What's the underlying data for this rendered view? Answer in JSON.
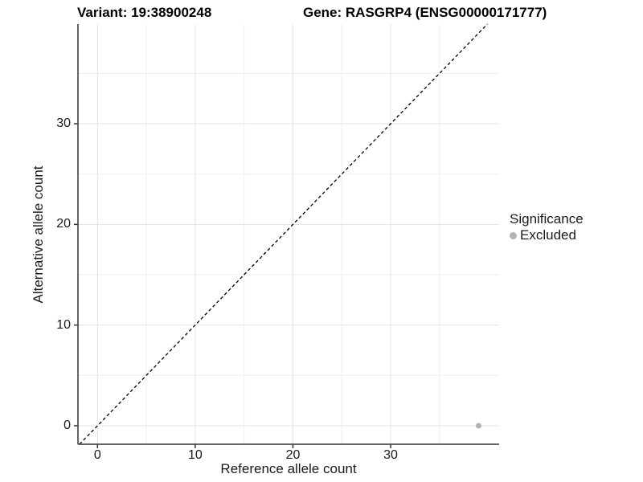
{
  "chart_data": {
    "type": "scatter",
    "title_left": "Variant: 19:38900248",
    "title_right": "Gene: RASGRP4 (ENSG00000171777)",
    "xlabel": "Reference allele count",
    "ylabel": "Alternative allele count",
    "x_ticks": [
      0,
      10,
      20,
      30
    ],
    "y_ticks": [
      0,
      10,
      20,
      30
    ],
    "x_minor": [
      5,
      15,
      25,
      35
    ],
    "y_minor": [
      5,
      15,
      25,
      35
    ],
    "xlim": [
      -2.0,
      41.1
    ],
    "ylim": [
      -1.84,
      39.9
    ],
    "grid": true,
    "identity_line": {
      "equation": "y = x",
      "style": "dashed",
      "color": "#000000"
    },
    "points": [
      {
        "x": 39,
        "y": 0,
        "significance": "Excluded"
      }
    ],
    "legend": {
      "title": "Significance",
      "position": "right",
      "items": [
        {
          "label": "Excluded",
          "color": "#b3b3b3"
        }
      ]
    },
    "colors": {
      "background": "#ffffff",
      "axis_line": "#333333",
      "grid_major": "#e3e3e3",
      "grid_minor": "#efefef",
      "tick_mark": "#333333",
      "text": "#1a1a1a",
      "point": "#b3b3b3"
    }
  }
}
